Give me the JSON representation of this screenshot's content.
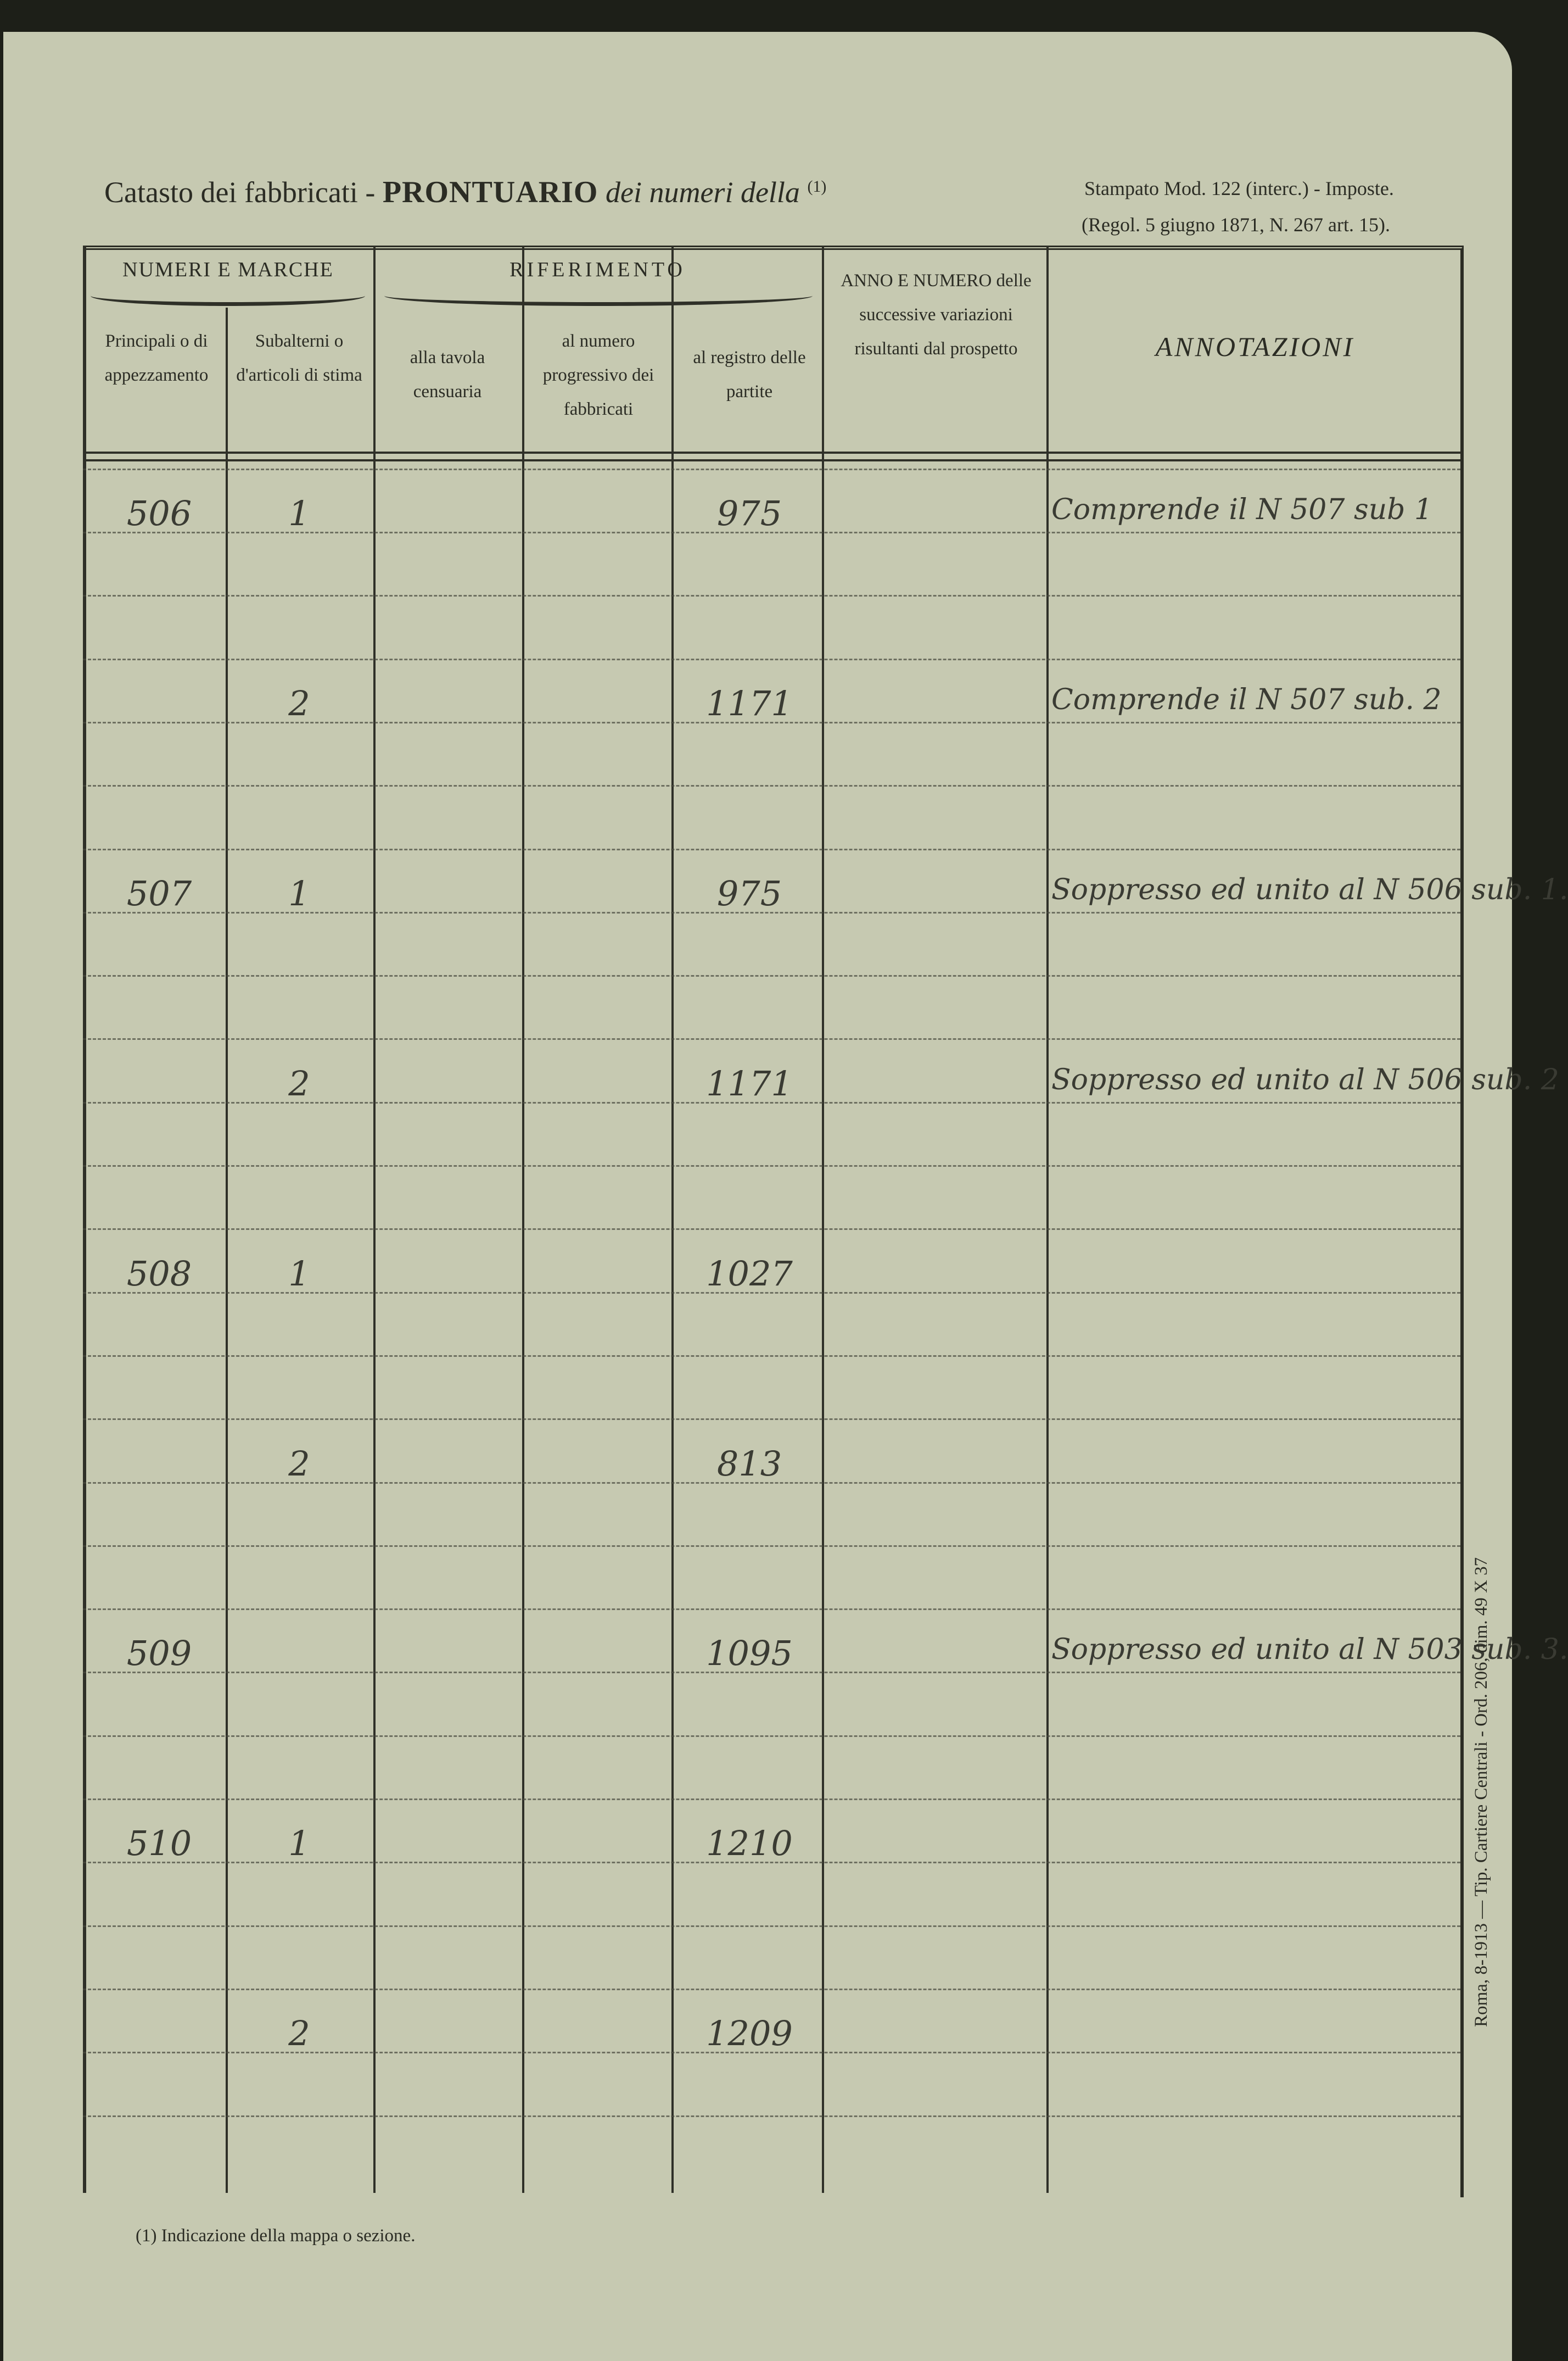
{
  "header": {
    "title_plain": "Catasto dei fabbricati - ",
    "title_bold": "PRONTUARIO",
    "title_italic": " dei numeri della ",
    "title_note": "(1)",
    "stamp_line1": "Stampato Mod. 122 (interc.) - Imposte.",
    "stamp_line2": "(Regol. 5 giugno 1871, N. 267 art. 15)."
  },
  "columns": {
    "group_numeri": "NUMERI E MARCHE",
    "group_riferimento": "RIFERIMENTO",
    "principali": "Principali o di appezzamento",
    "subalterni": "Subalterni o d'articoli di stima",
    "tavola": "alla tavola censuaria",
    "numero": "al numero progressivo dei fabbricati",
    "registro": "al registro delle partite",
    "anno": "ANNO E NUMERO delle successive variazioni risultanti dal prospetto",
    "annotazioni": "ANNOTAZIONI"
  },
  "rows": [
    {
      "principale": "506",
      "subalterno": "1",
      "tavola": "",
      "numero": "",
      "registro": "975",
      "anno": "",
      "annotazione": "Comprende il N 507 sub 1"
    },
    {
      "principale": "",
      "subalterno": "2",
      "tavola": "",
      "numero": "",
      "registro": "1171",
      "anno": "",
      "annotazione": "Comprende il N 507 sub. 2"
    },
    {
      "principale": "507",
      "subalterno": "1",
      "tavola": "",
      "numero": "",
      "registro": "975",
      "anno": "",
      "annotazione": "Soppresso ed unito al N 506 sub. 1."
    },
    {
      "principale": "",
      "subalterno": "2",
      "tavola": "",
      "numero": "",
      "registro": "1171",
      "anno": "",
      "annotazione": "Soppresso ed unito al N 506 sub. 2"
    },
    {
      "principale": "508",
      "subalterno": "1",
      "tavola": "",
      "numero": "",
      "registro": "1027",
      "anno": "",
      "annotazione": ""
    },
    {
      "principale": "",
      "subalterno": "2",
      "tavola": "",
      "numero": "",
      "registro": "813",
      "anno": "",
      "annotazione": ""
    },
    {
      "principale": "509",
      "subalterno": "",
      "tavola": "",
      "numero": "",
      "registro": "1095",
      "anno": "",
      "annotazione": "Soppresso ed unito al N 503 sub. 3."
    },
    {
      "principale": "510",
      "subalterno": "1",
      "tavola": "",
      "numero": "",
      "registro": "1210",
      "anno": "",
      "annotazione": ""
    },
    {
      "principale": "",
      "subalterno": "2",
      "tavola": "",
      "numero": "",
      "registro": "1209",
      "anno": "",
      "annotazione": ""
    }
  ],
  "footnote": "(1) Indicazione della mappa o sezione.",
  "printer": "Roma, 8-1913 — Tip. Cartiere Centrali - Ord. 206, dim. 49 X 37"
}
